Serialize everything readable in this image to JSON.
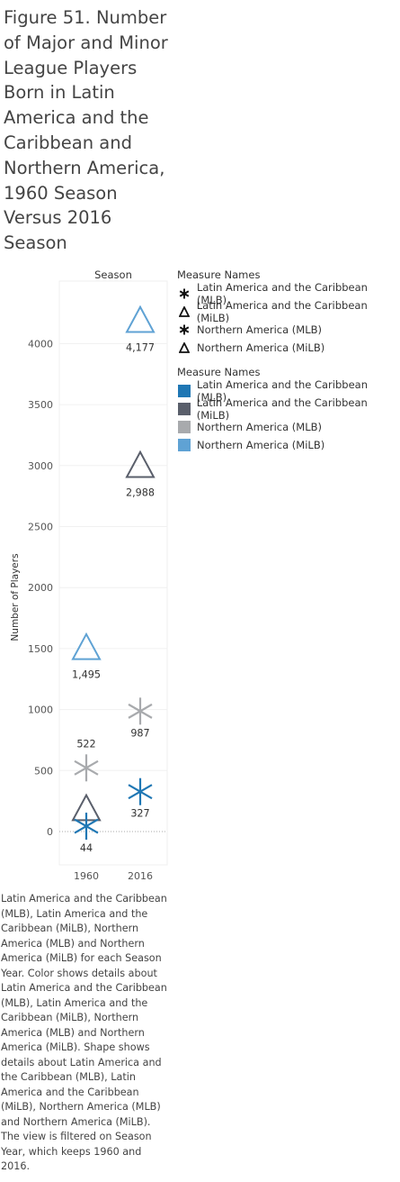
{
  "title": "Figure 51. Number of Major and Minor League Players Born in Latin America and the Caribbean and Northern America, 1960 Season Versus 2016 Season",
  "caption": "Latin America and the Caribbean (MLB), Latin America and the Caribbean (MiLB), Northern America (MLB) and Northern America (MiLB) for each Season Year.  Color shows details about Latin America and the Caribbean (MLB), Latin America and the Caribbean (MiLB), Northern America (MLB) and Northern America (MiLB).  Shape shows details about Latin America and the Caribbean (MLB), Latin America and the Caribbean (MiLB), Northern America (MLB) and Northern America (MiLB).  The view is filtered on Season Year, which keeps 1960 and 2016.",
  "legend_shape": {
    "title": "Measure Names",
    "items": [
      {
        "label": "Latin America and the Caribbean (MLB)",
        "shape": "asterisk"
      },
      {
        "label": "Latin America and the Caribbean (MiLB)",
        "shape": "triangle"
      },
      {
        "label": "Northern America (MLB)",
        "shape": "asterisk"
      },
      {
        "label": "Northern America (MiLB)",
        "shape": "triangle"
      }
    ]
  },
  "legend_color": {
    "title": "Measure Names",
    "items": [
      {
        "label": "Latin America and the Caribbean (MLB)",
        "color": "#1f77b4"
      },
      {
        "label": "Latin America and the Caribbean (MiLB)",
        "color": "#5a5f6b"
      },
      {
        "label": "Northern America (MLB)",
        "color": "#a8aaad"
      },
      {
        "label": "Northern America (MiLB)",
        "color": "#5fa2d4"
      }
    ]
  },
  "chart_data": {
    "type": "scatter",
    "column_header": "Season",
    "categories": [
      "1960",
      "2016"
    ],
    "ylabel": "Number of Players",
    "ylim": [
      -250,
      4700
    ],
    "yticks": [
      0,
      500,
      1000,
      1500,
      2000,
      2500,
      3000,
      3500,
      4000
    ],
    "grid": true,
    "series": [
      {
        "name": "Latin America and the Caribbean (MLB)",
        "shape": "asterisk",
        "color": "#1f77b4",
        "values": [
          44,
          327
        ],
        "labels": [
          "44",
          "327"
        ]
      },
      {
        "name": "Latin America and the Caribbean (MiLB)",
        "shape": "triangle",
        "color": "#5a5f6b",
        "values": [
          175,
          2988
        ],
        "labels": [
          "",
          "2,988"
        ]
      },
      {
        "name": "Northern America (MLB)",
        "shape": "asterisk",
        "color": "#a8aaad",
        "values": [
          522,
          987
        ],
        "labels": [
          "522",
          "987"
        ]
      },
      {
        "name": "Northern America (MiLB)",
        "shape": "triangle",
        "color": "#5fa2d4",
        "values": [
          1495,
          4177
        ],
        "labels": [
          "1,495",
          "4,177"
        ]
      }
    ]
  }
}
